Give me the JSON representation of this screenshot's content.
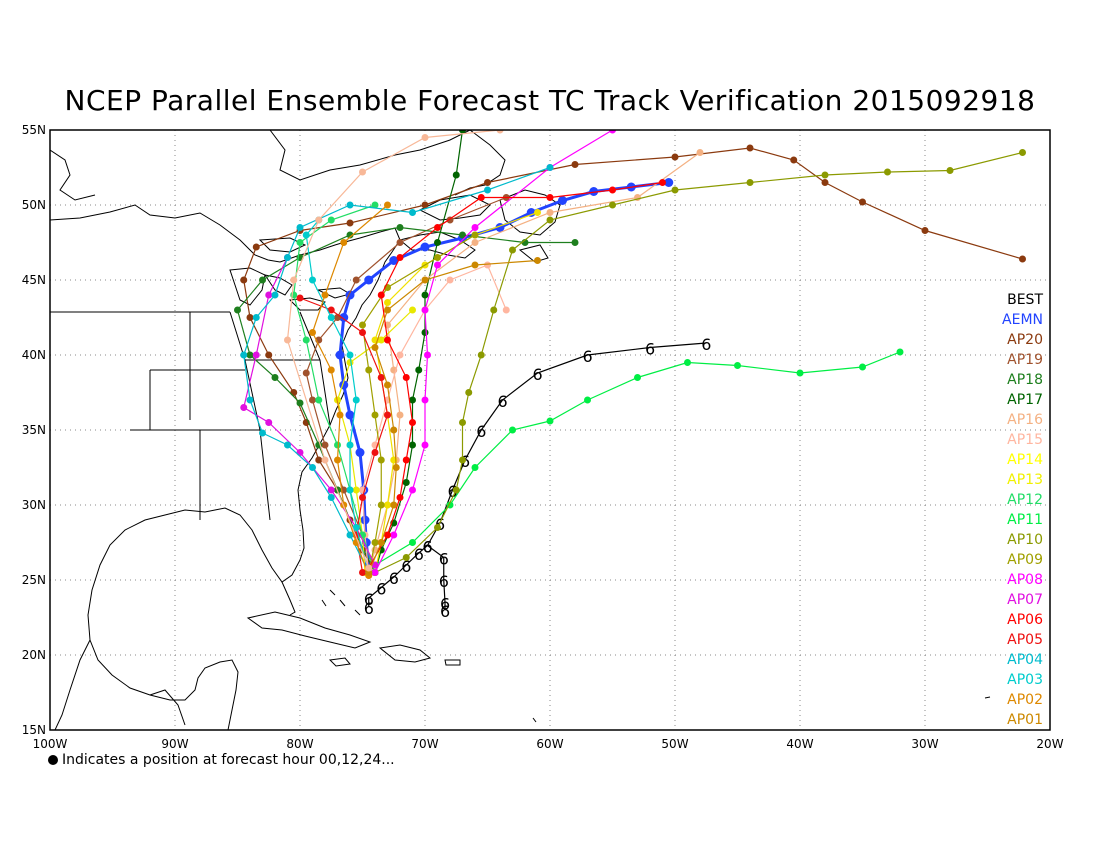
{
  "title": "NCEP Parallel Ensemble Forecast TC Track Verification 2015092918",
  "footnote": "Indicates a position at forecast hour 00,12,24...",
  "map": {
    "lon_range": [
      -100,
      -20
    ],
    "lat_range": [
      15,
      55
    ],
    "lon_ticks": [
      "100W",
      "90W",
      "80W",
      "70W",
      "60W",
      "50W",
      "40W",
      "30W",
      "20W"
    ],
    "lat_ticks": [
      "15N",
      "20N",
      "25N",
      "30N",
      "35N",
      "40N",
      "45N",
      "50N",
      "55N"
    ]
  },
  "legend": [
    {
      "label": "BEST",
      "color": "#000000"
    },
    {
      "label": "AEMN",
      "color": "#2244ff"
    },
    {
      "label": "AP20",
      "color": "#8b3a0f"
    },
    {
      "label": "AP19",
      "color": "#a0522d"
    },
    {
      "label": "AP18",
      "color": "#1e7f1e"
    },
    {
      "label": "AP17",
      "color": "#006400"
    },
    {
      "label": "AP16",
      "color": "#f4b183"
    },
    {
      "label": "AP15",
      "color": "#ffb6a0"
    },
    {
      "label": "AP14",
      "color": "#ffff00"
    },
    {
      "label": "AP13",
      "color": "#f0f000"
    },
    {
      "label": "AP12",
      "color": "#22dd66"
    },
    {
      "label": "AP11",
      "color": "#00ee44"
    },
    {
      "label": "AP10",
      "color": "#8b9a00"
    },
    {
      "label": "AP09",
      "color": "#a0a000"
    },
    {
      "label": "AP08",
      "color": "#ff00ff"
    },
    {
      "label": "AP07",
      "color": "#e010e0"
    },
    {
      "label": "AP06",
      "color": "#ff0000"
    },
    {
      "label": "AP05",
      "color": "#ee1111"
    },
    {
      "label": "AP04",
      "color": "#00bbcc"
    },
    {
      "label": "AP03",
      "color": "#00cccc"
    },
    {
      "label": "AP02",
      "color": "#dd8800"
    },
    {
      "label": "AP01",
      "color": "#cc8800"
    }
  ],
  "tracks": [
    {
      "name": "BEST",
      "color": "#000000",
      "symbol": true,
      "points": [
        [
          -74.5,
          23.2
        ],
        [
          -74.5,
          23.8
        ],
        [
          -73.5,
          24.5
        ],
        [
          -72.5,
          25.2
        ],
        [
          -71.5,
          26
        ],
        [
          -70.5,
          26.8
        ],
        [
          -69.8,
          27.3
        ],
        [
          -68.8,
          28.8
        ],
        [
          -67.8,
          31
        ],
        [
          -66.8,
          33
        ],
        [
          -65.5,
          35
        ],
        [
          -63.8,
          37
        ],
        [
          -61,
          38.8
        ],
        [
          -57,
          40
        ],
        [
          -52,
          40.5
        ],
        [
          -47.5,
          40.8
        ]
      ]
    },
    {
      "name": "BEST-LOOP",
      "color": "#000000",
      "symbol": true,
      "points": [
        [
          -69.8,
          27.3
        ],
        [
          -68.5,
          26.5
        ],
        [
          -68.5,
          25
        ],
        [
          -68.4,
          23.5
        ],
        [
          -68.4,
          23
        ]
      ]
    },
    {
      "name": "AEMN",
      "color": "#2244ff",
      "width": 3,
      "points": [
        [
          -74.5,
          26
        ],
        [
          -74.7,
          27.5
        ],
        [
          -74.8,
          29
        ],
        [
          -74.9,
          31
        ],
        [
          -75.2,
          33.5
        ],
        [
          -76,
          36
        ],
        [
          -76.5,
          38
        ],
        [
          -76.8,
          40
        ],
        [
          -76.5,
          42.5
        ],
        [
          -76,
          44
        ],
        [
          -74.5,
          45
        ],
        [
          -72.5,
          46.3
        ],
        [
          -70,
          47.2
        ],
        [
          -67,
          47.8
        ],
        [
          -64,
          48.5
        ],
        [
          -61.5,
          49.5
        ],
        [
          -59,
          50.3
        ],
        [
          -56.5,
          50.9
        ],
        [
          -53.5,
          51.2
        ],
        [
          -50.5,
          51.5
        ]
      ]
    },
    {
      "name": "AP20",
      "color": "#8b3a0f",
      "points": [
        [
          -74,
          25.5
        ],
        [
          -75,
          27
        ],
        [
          -76,
          29
        ],
        [
          -77,
          31
        ],
        [
          -78.5,
          33
        ],
        [
          -79.5,
          35.5
        ],
        [
          -80.5,
          37.5
        ],
        [
          -82.5,
          40
        ],
        [
          -84,
          42.5
        ],
        [
          -84.5,
          45
        ],
        [
          -83.5,
          47.2
        ],
        [
          -80,
          48.3
        ],
        [
          -76,
          48.8
        ],
        [
          -70,
          50
        ],
        [
          -65,
          51.5
        ],
        [
          -58,
          52.7
        ],
        [
          -50,
          53.2
        ],
        [
          -44,
          53.8
        ],
        [
          -40.5,
          53
        ],
        [
          -38,
          51.5
        ],
        [
          -35,
          50.2
        ],
        [
          -30,
          48.3
        ],
        [
          -22.2,
          46.4
        ]
      ]
    },
    {
      "name": "AP19",
      "color": "#a0522d",
      "points": [
        [
          -74,
          25.5
        ],
        [
          -75,
          28
        ],
        [
          -76.5,
          31
        ],
        [
          -78,
          34
        ],
        [
          -79,
          37
        ],
        [
          -79.5,
          38.8
        ],
        [
          -78.5,
          41
        ],
        [
          -77,
          42.5
        ],
        [
          -75.5,
          45
        ],
        [
          -72,
          47.5
        ],
        [
          -68,
          49
        ],
        [
          -63.5,
          50.5
        ]
      ]
    },
    {
      "name": "AP18",
      "color": "#1e7f1e",
      "points": [
        [
          -74,
          25.5
        ],
        [
          -75.5,
          28
        ],
        [
          -77,
          31
        ],
        [
          -78.5,
          34
        ],
        [
          -80,
          36.8
        ],
        [
          -82,
          38.5
        ],
        [
          -84,
          40
        ],
        [
          -85,
          43
        ],
        [
          -83,
          45
        ],
        [
          -80,
          46.5
        ],
        [
          -76,
          48
        ],
        [
          -72,
          48.5
        ],
        [
          -67,
          48
        ],
        [
          -62,
          47.5
        ],
        [
          -58,
          47.5
        ]
      ]
    },
    {
      "name": "AP17",
      "color": "#006400",
      "points": [
        [
          -74,
          25.5
        ],
        [
          -73.5,
          27
        ],
        [
          -72.5,
          28.8
        ],
        [
          -71.5,
          31.5
        ],
        [
          -71,
          34
        ],
        [
          -71,
          37
        ],
        [
          -70.5,
          39
        ],
        [
          -70,
          41.5
        ],
        [
          -70,
          44
        ],
        [
          -69,
          47.5
        ],
        [
          -67.5,
          52
        ],
        [
          -67,
          55
        ]
      ]
    },
    {
      "name": "AP16",
      "color": "#f4b183",
      "points": [
        [
          -74.5,
          25.5
        ],
        [
          -74,
          27
        ],
        [
          -73,
          30
        ],
        [
          -72.3,
          33
        ],
        [
          -72,
          36
        ],
        [
          -72.5,
          39
        ],
        [
          -73,
          42
        ],
        [
          -70,
          45
        ],
        [
          -66,
          47.5
        ],
        [
          -60,
          49.5
        ],
        [
          -53,
          50.5
        ],
        [
          -48,
          53.5
        ]
      ]
    },
    {
      "name": "AP15",
      "color": "#ffb6a0",
      "points": [
        [
          -74.5,
          25.3
        ],
        [
          -74.8,
          28
        ],
        [
          -75,
          31
        ],
        [
          -74,
          34
        ],
        [
          -73,
          37
        ],
        [
          -72,
          40
        ],
        [
          -70,
          43
        ],
        [
          -68,
          45
        ],
        [
          -65,
          46
        ],
        [
          -63.5,
          43
        ]
      ]
    },
    {
      "name": "AP14",
      "color": "#f0e000",
      "points": [
        [
          -74,
          25.5
        ],
        [
          -73.5,
          27.5
        ],
        [
          -73,
          30
        ],
        [
          -72.5,
          33
        ],
        [
          -73,
          36
        ],
        [
          -73.5,
          38.5
        ],
        [
          -74,
          41
        ],
        [
          -73,
          43.5
        ],
        [
          -70,
          46
        ],
        [
          -66,
          48
        ],
        [
          -61,
          49.5
        ]
      ]
    },
    {
      "name": "AP13",
      "color": "#e8e800",
      "points": [
        [
          -74.8,
          25.5
        ],
        [
          -75,
          28
        ],
        [
          -75.5,
          31
        ],
        [
          -76,
          34
        ],
        [
          -77,
          37
        ],
        [
          -76,
          39.5
        ],
        [
          -73.5,
          41
        ],
        [
          -71,
          43
        ]
      ]
    },
    {
      "name": "AP12",
      "color": "#22dd66",
      "points": [
        [
          -74,
          25.5
        ],
        [
          -75,
          28
        ],
        [
          -76,
          31
        ],
        [
          -77,
          34
        ],
        [
          -78.5,
          37
        ],
        [
          -79.5,
          41
        ],
        [
          -80.5,
          44
        ],
        [
          -80,
          47.5
        ],
        [
          -77.5,
          49
        ],
        [
          -74,
          50
        ]
      ]
    },
    {
      "name": "AP11",
      "color": "#00ee44",
      "points": [
        [
          -74,
          26
        ],
        [
          -71,
          27.5
        ],
        [
          -68,
          30
        ],
        [
          -66,
          32.5
        ],
        [
          -63,
          35
        ],
        [
          -60,
          35.6
        ],
        [
          -57,
          37
        ],
        [
          -53,
          38.5
        ],
        [
          -49,
          39.5
        ],
        [
          -45,
          39.3
        ],
        [
          -40,
          38.8
        ],
        [
          -35,
          39.2
        ],
        [
          -32,
          40.2
        ]
      ]
    },
    {
      "name": "AP10",
      "color": "#8b9a00",
      "points": [
        [
          -74,
          25.5
        ],
        [
          -71.5,
          26.5
        ],
        [
          -69,
          28.5
        ],
        [
          -67.5,
          31
        ],
        [
          -67,
          33
        ],
        [
          -67,
          35.5
        ],
        [
          -66.5,
          37.5
        ],
        [
          -65.5,
          40
        ],
        [
          -64.5,
          43
        ],
        [
          -63,
          47
        ],
        [
          -60,
          49
        ],
        [
          -55,
          50
        ],
        [
          -50,
          51
        ],
        [
          -44,
          51.5
        ],
        [
          -38,
          52
        ],
        [
          -33,
          52.2
        ],
        [
          -28,
          52.3
        ],
        [
          -22.2,
          53.5
        ]
      ]
    },
    {
      "name": "AP09",
      "color": "#a0a000",
      "points": [
        [
          -74.5,
          25.5
        ],
        [
          -74,
          27.5
        ],
        [
          -73.5,
          30
        ],
        [
          -73.5,
          33
        ],
        [
          -74,
          36
        ],
        [
          -74.5,
          39
        ],
        [
          -75,
          42
        ],
        [
          -73,
          44.5
        ],
        [
          -69,
          46.5
        ],
        [
          -66,
          48
        ]
      ]
    },
    {
      "name": "AP08",
      "color": "#ff00ff",
      "points": [
        [
          -74,
          25.5
        ],
        [
          -72.5,
          28
        ],
        [
          -71,
          31
        ],
        [
          -70,
          34
        ],
        [
          -70,
          37
        ],
        [
          -69.8,
          40
        ],
        [
          -70,
          43
        ],
        [
          -69,
          46
        ],
        [
          -66,
          48.5
        ],
        [
          -60,
          52.5
        ],
        [
          -55,
          55
        ]
      ]
    },
    {
      "name": "AP07",
      "color": "#e010e0",
      "points": [
        [
          -74,
          26
        ],
        [
          -75.5,
          28.5
        ],
        [
          -77.5,
          31
        ],
        [
          -80,
          33.5
        ],
        [
          -82.5,
          35.5
        ],
        [
          -84.5,
          36.5
        ],
        [
          -83.5,
          40
        ],
        [
          -82.5,
          44
        ],
        [
          -81,
          46.5
        ]
      ]
    },
    {
      "name": "AP06",
      "color": "#ff0000",
      "points": [
        [
          -74.5,
          25.8
        ],
        [
          -73,
          28
        ],
        [
          -72,
          30.5
        ],
        [
          -71.5,
          33
        ],
        [
          -71,
          35.5
        ],
        [
          -71.5,
          38.5
        ],
        [
          -73,
          41
        ],
        [
          -73.5,
          44
        ],
        [
          -72,
          46.5
        ],
        [
          -69,
          48.5
        ],
        [
          -65.5,
          50.5
        ],
        [
          -60,
          50.5
        ],
        [
          -55,
          51
        ],
        [
          -51,
          51.5
        ]
      ]
    },
    {
      "name": "AP05",
      "color": "#ee1111",
      "points": [
        [
          -75,
          25.5
        ],
        [
          -75.5,
          28
        ],
        [
          -75,
          30.5
        ],
        [
          -74,
          33.5
        ],
        [
          -73,
          36
        ],
        [
          -73.5,
          38.5
        ],
        [
          -75,
          41.5
        ],
        [
          -77.5,
          43
        ],
        [
          -80,
          43.8
        ]
      ]
    },
    {
      "name": "AP04",
      "color": "#00bbcc",
      "points": [
        [
          -74.5,
          25.5
        ],
        [
          -76,
          28
        ],
        [
          -77.5,
          30.5
        ],
        [
          -79,
          32.5
        ],
        [
          -81,
          34
        ],
        [
          -83,
          34.8
        ],
        [
          -84,
          37
        ],
        [
          -84.5,
          40
        ],
        [
          -83.5,
          42.5
        ],
        [
          -82,
          44
        ],
        [
          -81,
          46.5
        ],
        [
          -80,
          48.5
        ],
        [
          -76,
          50
        ],
        [
          -71,
          49.5
        ],
        [
          -65,
          51
        ],
        [
          -60,
          52.5
        ]
      ]
    },
    {
      "name": "AP03",
      "color": "#00cccc",
      "points": [
        [
          -74.5,
          25.5
        ],
        [
          -75.5,
          28.5
        ],
        [
          -76,
          31
        ],
        [
          -76,
          34
        ],
        [
          -75.5,
          37
        ],
        [
          -76,
          40
        ],
        [
          -77.5,
          42.5
        ],
        [
          -79,
          45
        ],
        [
          -79.5,
          48
        ],
        [
          -78.5,
          49
        ]
      ]
    },
    {
      "name": "AP02",
      "color": "#dd8800",
      "points": [
        [
          -74.5,
          25.3
        ],
        [
          -75.5,
          27.5
        ],
        [
          -76.5,
          30
        ],
        [
          -77,
          33
        ],
        [
          -76.8,
          36
        ],
        [
          -77.5,
          39
        ],
        [
          -79,
          41.5
        ],
        [
          -78,
          44
        ],
        [
          -76.5,
          47.5
        ],
        [
          -73,
          50
        ]
      ]
    },
    {
      "name": "AP01",
      "color": "#cc8800",
      "points": [
        [
          -74.5,
          25.5
        ],
        [
          -73.5,
          27.5
        ],
        [
          -72.5,
          30
        ],
        [
          -72.3,
          32.5
        ],
        [
          -72.5,
          35
        ],
        [
          -73,
          38
        ],
        [
          -74,
          40.5
        ],
        [
          -73,
          43
        ],
        [
          -70,
          45
        ],
        [
          -66,
          46
        ],
        [
          -61,
          46.3
        ]
      ]
    },
    {
      "name": "AP15b",
      "color": "#f8b898",
      "points": [
        [
          -74.5,
          25.8
        ],
        [
          -78,
          33
        ],
        [
          -81,
          41
        ],
        [
          -80.5,
          45
        ],
        [
          -78.5,
          49
        ],
        [
          -75,
          52.2
        ],
        [
          -70,
          54.5
        ],
        [
          -64,
          55
        ]
      ]
    }
  ]
}
